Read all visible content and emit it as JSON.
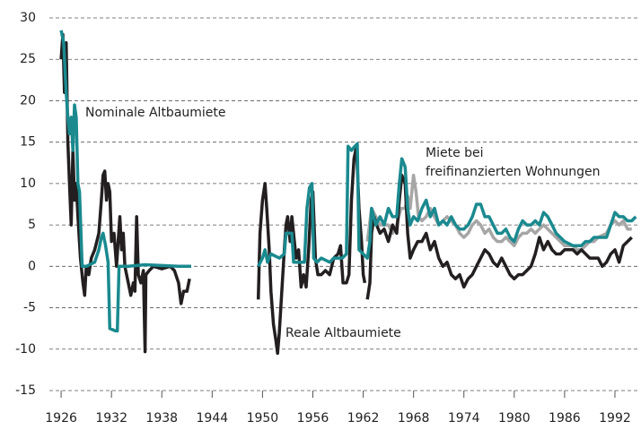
{
  "chart_data": {
    "type": "line",
    "xlim": [
      1924.6,
      1995
    ],
    "ylim": [
      -15,
      30
    ],
    "xticks": [
      1926,
      1932,
      1938,
      1944,
      1950,
      1956,
      1962,
      1968,
      1974,
      1980,
      1986,
      1992
    ],
    "yticks": [
      -15,
      -10,
      -5,
      0,
      5,
      10,
      15,
      20,
      25,
      30
    ],
    "grid": true,
    "series": [
      {
        "name": "Miete bei\nfreifinanzierten Wohnungen",
        "color": "#a6a6a6",
        "x": [
          1962.5,
          1963,
          1963.5,
          1964,
          1965,
          1965.5,
          1966,
          1966.5,
          1967,
          1967.3,
          1967.6,
          1968,
          1968.3,
          1968.6,
          1969,
          1969.5,
          1970,
          1970.5,
          1971,
          1971.5,
          1972,
          1972.5,
          1973,
          1973.5,
          1974,
          1974.5,
          1975,
          1975.5,
          1976,
          1976.5,
          1977,
          1977.5,
          1978,
          1978.5,
          1979,
          1979.5,
          1980,
          1980.5,
          1981,
          1981.5,
          1982,
          1982.5,
          1983,
          1983.5,
          1984,
          1984.5,
          1985,
          1985.5,
          1986,
          1987,
          1987.5,
          1988,
          1988.5,
          1989,
          1989.5,
          1990,
          1991,
          1991.5,
          1992,
          1992.5,
          1993,
          1993.5,
          1994
        ],
        "values": [
          3,
          7,
          6,
          5,
          5,
          4,
          5,
          7,
          7,
          8.5,
          7,
          11,
          9,
          6,
          5.5,
          6,
          7,
          6,
          5,
          5.5,
          6,
          5.5,
          5,
          4,
          3.5,
          4,
          5,
          5.5,
          5,
          4,
          4.5,
          3.5,
          3,
          3,
          3.5,
          3,
          2.5,
          3.5,
          4,
          4,
          4.5,
          4,
          4.5,
          5,
          4.5,
          4,
          3.5,
          3,
          2.5,
          2.5,
          2,
          2,
          2.5,
          3,
          3,
          3.5,
          4,
          5,
          5.5,
          5,
          5.5,
          4.5,
          4.5
        ]
      },
      {
        "name": "Reale Altbaumiete",
        "color": "#231f20",
        "x": [
          1926,
          1926.2,
          1926.4,
          1926.6,
          1926.8,
          1927,
          1927.2,
          1927.4,
          1927.6,
          1927.8,
          1928,
          1928.3,
          1928.6,
          1928.8,
          1929,
          1929.3,
          1929.6,
          1930,
          1930.5,
          1930.8,
          1931,
          1931.2,
          1931.4,
          1931.6,
          1931.8,
          1932,
          1932.3,
          1932.6,
          1932.8,
          1933,
          1933.2,
          1933.4,
          1933.6,
          1934,
          1934.3,
          1934.6,
          1934.8,
          1935,
          1935.2,
          1935.5,
          1935.8,
          1936,
          1936.1,
          1936.5,
          1937,
          1938,
          1939,
          1939.5,
          1940,
          1940.3,
          1940.6,
          1941,
          1941.3,
          1945,
          1949.5,
          1949.7,
          1950,
          1950.3,
          1950.5,
          1950.8,
          1951,
          1951.3,
          1951.6,
          1951.8,
          1952,
          1952.3,
          1952.6,
          1952.8,
          1953,
          1953.3,
          1953.5,
          1953.8,
          1954,
          1954.3,
          1954.6,
          1954.9,
          1955.2,
          1955.5,
          1955.8,
          1956,
          1956.3,
          1956.6,
          1957,
          1957.5,
          1958,
          1958.5,
          1959,
          1959.3,
          1959.6,
          1960,
          1960.3,
          1960.6,
          1960.9,
          1961.2,
          1961.5,
          1961.8,
          1962,
          1962.2,
          1962.35,
          1962.5,
          1962.8,
          1963,
          1963.3,
          1963.6,
          1964,
          1964.5,
          1965,
          1965.5,
          1966,
          1966.3,
          1966.6,
          1967,
          1967.3,
          1967.6,
          1968,
          1968.5,
          1969,
          1969.5,
          1970,
          1970.5,
          1971,
          1971.5,
          1972,
          1972.5,
          1973,
          1973.5,
          1974,
          1974.5,
          1975,
          1975.5,
          1976,
          1976.5,
          1977,
          1977.5,
          1978,
          1978.5,
          1979,
          1979.5,
          1980,
          1980.5,
          1981,
          1981.5,
          1982,
          1982.5,
          1983,
          1983.5,
          1984,
          1984.5,
          1985,
          1985.5,
          1986,
          1987,
          1987.5,
          1988,
          1989,
          1990,
          1990.5,
          1991,
          1991.5,
          1992,
          1992.5,
          1993,
          1993.5,
          1994
        ],
        "values": [
          25,
          28,
          21,
          27,
          15,
          10,
          5,
          14,
          8,
          10,
          6,
          1,
          -2,
          -3.5,
          0,
          -1,
          1,
          2,
          4,
          8,
          11,
          11.5,
          8,
          10,
          9,
          3,
          4,
          0,
          3,
          6,
          2,
          4,
          0,
          -2,
          -3.5,
          -2,
          -3,
          6,
          -1,
          -2,
          -0.5,
          -10.3,
          -1,
          -0.5,
          0,
          -0.3,
          0,
          -0.5,
          -2,
          -4.5,
          -3,
          -3,
          -1.5,
          null,
          -4,
          4,
          8,
          10,
          7,
          2,
          -3,
          -7,
          -9,
          -10.5,
          -8,
          -3,
          2,
          5,
          6,
          3,
          6,
          3,
          1,
          2,
          -2.5,
          -1,
          -2.5,
          2,
          8,
          9,
          1,
          -1,
          -1,
          -0.5,
          -1,
          1,
          1.5,
          2.5,
          -2,
          -2,
          -1,
          8,
          13,
          14.5,
          7,
          3,
          -1,
          -2,
          null,
          -4,
          -2,
          4,
          6,
          5,
          4,
          4.5,
          3,
          5,
          4,
          8,
          11,
          10,
          4,
          1,
          2,
          3,
          3,
          4,
          2,
          3,
          1,
          0,
          0.5,
          -1,
          -1.5,
          -1,
          -2.5,
          -1.5,
          -1,
          0,
          1,
          2,
          1.5,
          0.5,
          0,
          1,
          0,
          -1,
          -1.5,
          -1,
          -1,
          -0.5,
          0,
          1.5,
          3.5,
          2,
          3,
          2,
          1.5,
          1.5,
          2,
          2,
          1.5,
          2,
          1,
          1,
          0,
          0.5,
          1.5,
          2,
          0.5,
          2.5,
          3,
          3.5
        ]
      },
      {
        "name": "Nominale Altbaumiete",
        "color": "#1a8a8f",
        "x": [
          1926,
          1926.3,
          1926.6,
          1926.8,
          1927,
          1927.2,
          1927.4,
          1927.6,
          1927.8,
          1928,
          1928.2,
          1928.5,
          1929,
          1930,
          1930.5,
          1930.8,
          1931,
          1931.3,
          1931.6,
          1931.8,
          1932.5,
          1932.7,
          1932.9,
          1934,
          1936,
          1938,
          1940,
          1941.5,
          1945,
          1949.5,
          1950,
          1950.3,
          1950.6,
          1951,
          1952,
          1952.6,
          1952.8,
          1953.5,
          1953.7,
          1955,
          1955.3,
          1955.6,
          1955.9,
          1956.1,
          1956.5,
          1957,
          1958,
          1958.5,
          1959.5,
          1960,
          1960.2,
          1960.6,
          1961,
          1961.3,
          1961.5,
          1962,
          1962.5,
          1962.8,
          1963,
          1963.5,
          1964,
          1964.5,
          1965,
          1965.5,
          1966,
          1966.3,
          1966.6,
          1967,
          1967.3,
          1967.6,
          1968,
          1968.5,
          1969,
          1969.5,
          1970,
          1970.5,
          1971,
          1971.5,
          1972,
          1972.5,
          1973,
          1973.5,
          1974,
          1974.5,
          1975,
          1975.5,
          1976,
          1976.5,
          1977,
          1977.5,
          1978,
          1978.5,
          1979,
          1979.5,
          1980,
          1980.5,
          1981,
          1981.5,
          1982,
          1982.5,
          1983,
          1983.5,
          1984,
          1984.5,
          1985,
          1985.5,
          1986,
          1987,
          1987.5,
          1988,
          1988.5,
          1989,
          1989.5,
          1990,
          1990.5,
          1991,
          1991.5,
          1992,
          1992.5,
          1993,
          1993.5,
          1994,
          1994.5
        ],
        "values": [
          28.5,
          27,
          21,
          18,
          16,
          18,
          14,
          19.5,
          18,
          10,
          9,
          0,
          0,
          0.5,
          2,
          3.5,
          4,
          2.5,
          0.5,
          -7.5,
          -7.8,
          -7.8,
          0,
          0,
          0.2,
          0.1,
          0,
          0,
          null,
          0,
          1,
          2,
          0.5,
          1.5,
          1,
          1.5,
          4,
          4,
          0.5,
          0.5,
          7,
          9.5,
          10,
          1,
          0.5,
          1,
          0.5,
          1,
          1,
          1.5,
          14.5,
          14,
          14.5,
          14.8,
          2,
          1.5,
          1,
          3,
          7,
          5,
          6,
          5,
          7,
          6,
          6,
          10,
          13,
          12,
          7,
          5,
          6,
          5.5,
          7,
          8,
          6,
          7,
          5,
          5.5,
          5,
          6,
          5,
          4.5,
          4.5,
          5,
          6,
          7.5,
          7.5,
          6,
          6,
          5,
          4,
          4,
          4.5,
          3.5,
          3,
          4.5,
          5.5,
          5,
          5,
          5.5,
          5,
          6.5,
          6,
          5,
          4,
          3.5,
          3,
          2.5,
          2.5,
          2.5,
          3,
          3,
          3.5,
          3.5,
          3.5,
          3.5,
          5,
          6.5,
          6,
          6,
          5.5,
          5.5,
          6
        ]
      }
    ]
  }
}
